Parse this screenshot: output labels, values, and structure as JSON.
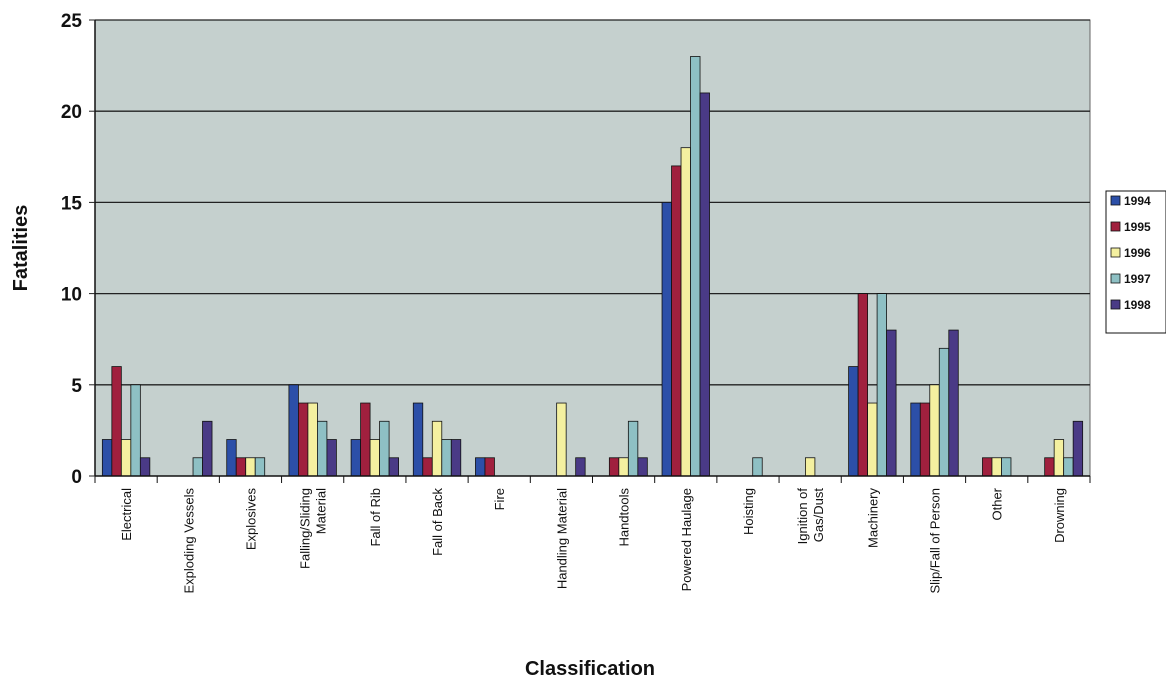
{
  "chart_data": {
    "type": "bar",
    "xlabel": "Classification",
    "ylabel": "Fatalities",
    "ylim": [
      0,
      25
    ],
    "yticks": [
      "0",
      "5",
      "10",
      "15",
      "20",
      "25"
    ],
    "grid": true,
    "legend_position": "right",
    "categories": [
      [
        "Electrical"
      ],
      [
        "Exploding Vessels"
      ],
      [
        "Explosives"
      ],
      [
        "Falling/Sliding",
        "Material"
      ],
      [
        "Fall of Rib"
      ],
      [
        "Fall of Back"
      ],
      [
        "Fire"
      ],
      [
        "Handling Material"
      ],
      [
        "Handtools"
      ],
      [
        "Powered Haulage"
      ],
      [
        "Hoisting"
      ],
      [
        "Ignition of",
        "Gas/Dust"
      ],
      [
        "Machinery"
      ],
      [
        "Slip/Fall of Person"
      ],
      [
        "Other"
      ],
      [
        "Drowning"
      ]
    ],
    "series": [
      {
        "name": "1994",
        "color": "#2c4fa8",
        "values": [
          2,
          0,
          2,
          5,
          2,
          4,
          1,
          0,
          0,
          15,
          0,
          0,
          6,
          4,
          0,
          0
        ]
      },
      {
        "name": "1995",
        "color": "#a0203e",
        "values": [
          6,
          0,
          1,
          4,
          4,
          1,
          1,
          0,
          1,
          17,
          0,
          0,
          10,
          4,
          1,
          1
        ]
      },
      {
        "name": "1996",
        "color": "#f4f0a0",
        "values": [
          2,
          0,
          1,
          4,
          2,
          3,
          0,
          4,
          1,
          18,
          0,
          1,
          4,
          5,
          1,
          2
        ]
      },
      {
        "name": "1997",
        "color": "#8ec0c4",
        "values": [
          5,
          1,
          1,
          3,
          3,
          2,
          0,
          0,
          3,
          23,
          1,
          0,
          10,
          7,
          1,
          1
        ]
      },
      {
        "name": "1998",
        "color": "#4a3a86",
        "values": [
          1,
          3,
          0,
          2,
          1,
          2,
          0,
          1,
          1,
          21,
          0,
          0,
          8,
          8,
          0,
          3
        ]
      }
    ]
  }
}
